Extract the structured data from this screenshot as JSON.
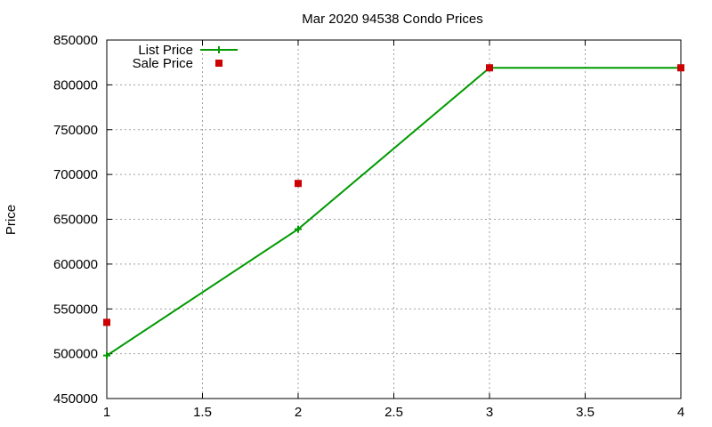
{
  "chart_data": {
    "type": "line",
    "title": "Mar 2020 94538 Condo Prices",
    "xlabel": "",
    "ylabel": "Price",
    "xlim": [
      1,
      4
    ],
    "ylim": [
      450000,
      850000
    ],
    "xticks": [
      "1",
      "1.5",
      "2",
      "2.5",
      "3",
      "3.5",
      "4"
    ],
    "yticks": [
      "450000",
      "500000",
      "550000",
      "600000",
      "650000",
      "700000",
      "750000",
      "800000",
      "850000"
    ],
    "grid": true,
    "legend_position": "top-left",
    "series": [
      {
        "name": "List Price",
        "style": "line+cross",
        "color": "#009900",
        "x": [
          1,
          2,
          3,
          4
        ],
        "y": [
          498000,
          639000,
          819000,
          819000
        ]
      },
      {
        "name": "Sale Price",
        "style": "square",
        "color": "#cc0000",
        "x": [
          1,
          2,
          3,
          4
        ],
        "y": [
          535000,
          690000,
          819000,
          819000
        ]
      }
    ]
  }
}
